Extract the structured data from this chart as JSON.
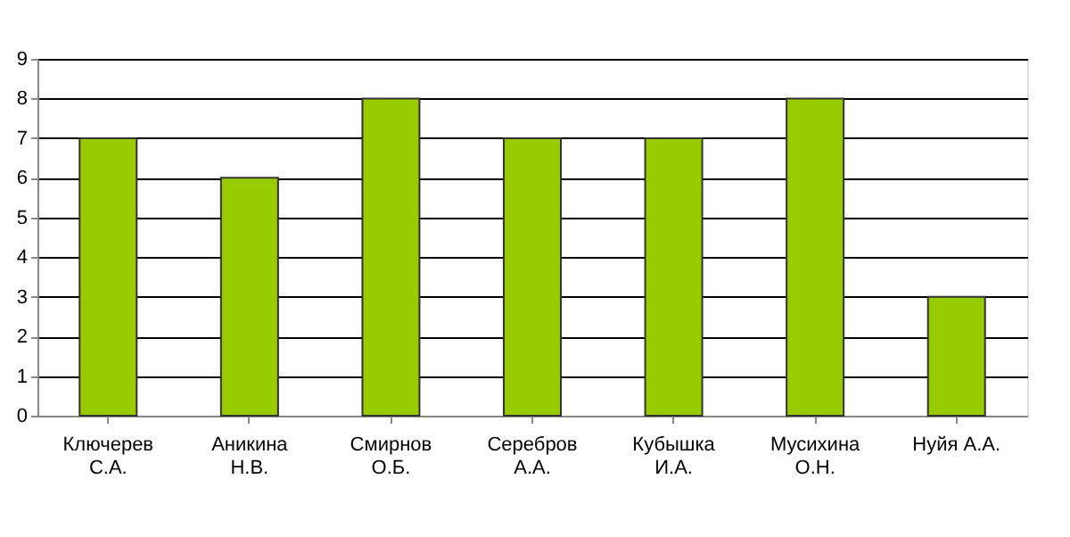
{
  "chart_data": {
    "type": "bar",
    "categories": [
      "Ключерев\nС.А.",
      "Аникина\nН.В.",
      "Смирнов\nО.Б.",
      "Серебров\nА.А.",
      "Кубышка\nИ.А.",
      "Мусихина\nО.Н.",
      "Нуйя А.А."
    ],
    "values": [
      7,
      6,
      8,
      7,
      7,
      8,
      3
    ],
    "color": "#99cc00",
    "ylim": [
      0,
      9
    ],
    "yticks": [
      0,
      1,
      2,
      3,
      4,
      5,
      6,
      7,
      8,
      9
    ],
    "grid": "y"
  }
}
